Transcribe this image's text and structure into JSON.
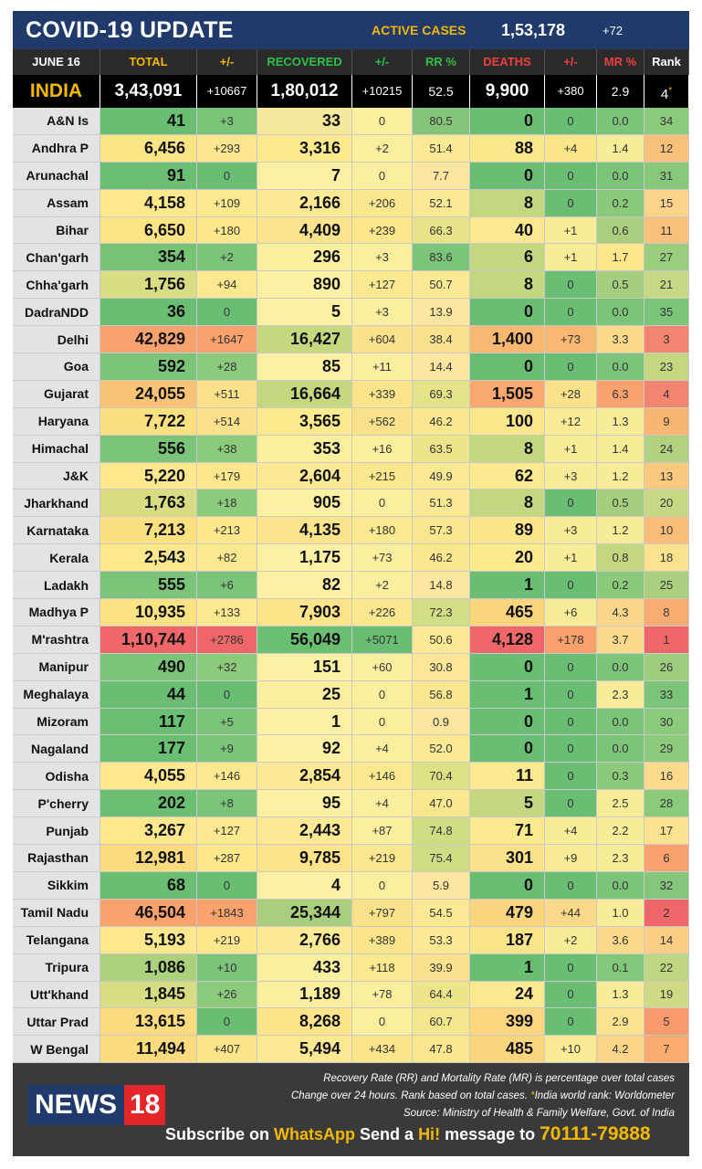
{
  "header": {
    "title": "COVID-19 UPDATE",
    "active_cases_label": "ACTIVE CASES",
    "active_cases_value": "1,53,178",
    "active_cases_change": "+72"
  },
  "columns": [
    {
      "label": "JUNE 16",
      "color": "#ffffff"
    },
    {
      "label": "TOTAL",
      "color": "#f5b800"
    },
    {
      "label": "+/-",
      "color": "#f5b800"
    },
    {
      "label": "RECOVERED",
      "color": "#2fbf4a"
    },
    {
      "label": "+/-",
      "color": "#2fbf4a"
    },
    {
      "label": "RR %",
      "color": "#2fbf4a"
    },
    {
      "label": "DEATHS",
      "color": "#f04040"
    },
    {
      "label": "+/-",
      "color": "#f04040"
    },
    {
      "label": "MR %",
      "color": "#f04040"
    },
    {
      "label": "Rank",
      "color": "#ffffff"
    }
  ],
  "india": {
    "name": "INDIA",
    "total": "3,43,091",
    "total_change": "+10667",
    "recovered": "1,80,012",
    "recovered_change": "+10215",
    "rr": "52.5",
    "deaths": "9,900",
    "deaths_change": "+380",
    "mr": "2.9",
    "rank": "4",
    "rank_mark": "*"
  },
  "states": [
    {
      "state": "A&N Is",
      "total": "41",
      "tc": "+3",
      "recovered": "33",
      "rc": "0",
      "rr": "80.5",
      "deaths": "0",
      "dc": "0",
      "mr": "0.0",
      "rank": "34",
      "colors": [
        "#69be73",
        "#7cc47a",
        "#f6e89a",
        "#fbef9f",
        "#86c47a",
        "#69be73",
        "#69be73",
        "#7cc47a",
        "#8ccb7c"
      ]
    },
    {
      "state": "Andhra P",
      "total": "6,456",
      "tc": "+293",
      "recovered": "3,316",
      "rc": "+2",
      "rr": "51.4",
      "deaths": "88",
      "dc": "+4",
      "mr": "1.4",
      "rank": "12",
      "colors": [
        "#fbe484",
        "#fce78e",
        "#fde98e",
        "#fbef9f",
        "#fbea93",
        "#fbe78b",
        "#fbe58b",
        "#f9ec98",
        "#f9c07c"
      ]
    },
    {
      "state": "Arunachal",
      "total": "91",
      "tc": "0",
      "recovered": "7",
      "rc": "0",
      "rr": "7.7",
      "deaths": "0",
      "dc": "0",
      "mr": "0.0",
      "rank": "31",
      "colors": [
        "#6bbf73",
        "#69be73",
        "#fdf0a2",
        "#fbef9f",
        "#fde7a0",
        "#69be73",
        "#69be73",
        "#7cc47a",
        "#88c87b"
      ]
    },
    {
      "state": "Assam",
      "total": "4,158",
      "tc": "+109",
      "recovered": "2,166",
      "rc": "+206",
      "rr": "52.1",
      "deaths": "8",
      "dc": "0",
      "mr": "0.2",
      "rank": "15",
      "colors": [
        "#fde88d",
        "#fbe98f",
        "#fce993",
        "#fbe78e",
        "#fbea93",
        "#c2d77f",
        "#69be73",
        "#8bca7b",
        "#fbd38a"
      ]
    },
    {
      "state": "Bihar",
      "total": "6,650",
      "tc": "+180",
      "recovered": "4,409",
      "rc": "+239",
      "rr": "66.3",
      "deaths": "40",
      "dc": "+1",
      "mr": "0.6",
      "rank": "11",
      "colors": [
        "#fbe484",
        "#fce78c",
        "#fce48c",
        "#fbe68b",
        "#e7e389",
        "#fce98f",
        "#f9ec98",
        "#abcf7f",
        "#f9c07c"
      ]
    },
    {
      "state": "Chan'garh",
      "total": "354",
      "tc": "+2",
      "recovered": "296",
      "rc": "+3",
      "rr": "83.6",
      "deaths": "6",
      "dc": "+1",
      "mr": "1.7",
      "rank": "27",
      "colors": [
        "#78c276",
        "#7cc47a",
        "#fbef9f",
        "#fbef9f",
        "#7cc47a",
        "#c2d77f",
        "#f9ec98",
        "#fbe68b",
        "#9acd7d"
      ]
    },
    {
      "state": "Chha'garh",
      "total": "1,756",
      "tc": "+94",
      "recovered": "890",
      "rc": "+127",
      "rr": "50.7",
      "deaths": "8",
      "dc": "0",
      "mr": "0.5",
      "rank": "21",
      "colors": [
        "#d8dd83",
        "#fce98f",
        "#fdf0a2",
        "#fbe98f",
        "#fbea93",
        "#c2d77f",
        "#69be73",
        "#a5ce7e",
        "#c6d884"
      ]
    },
    {
      "state": "DadraNDD",
      "total": "36",
      "tc": "0",
      "recovered": "5",
      "rc": "+3",
      "rr": "13.9",
      "deaths": "0",
      "dc": "0",
      "mr": "0.0",
      "rank": "35",
      "colors": [
        "#69be73",
        "#69be73",
        "#fdf0a2",
        "#fbef9f",
        "#fde7a0",
        "#69be73",
        "#69be73",
        "#7cc47a",
        "#7cc47a"
      ]
    },
    {
      "state": "Delhi",
      "total": "42,829",
      "tc": "+1647",
      "recovered": "16,427",
      "rc": "+604",
      "rr": "38.4",
      "deaths": "1,400",
      "dc": "+73",
      "mr": "3.3",
      "rank": "3",
      "colors": [
        "#f9a26d",
        "#f9a26d",
        "#c6d87f",
        "#fbe28a",
        "#fbe08e",
        "#f9b872",
        "#f9b872",
        "#fbd98a",
        "#f58570"
      ]
    },
    {
      "state": "Goa",
      "total": "592",
      "tc": "+28",
      "recovered": "85",
      "rc": "+11",
      "rr": "14.4",
      "deaths": "0",
      "dc": "0",
      "mr": "0.0",
      "rank": "23",
      "colors": [
        "#7cc47a",
        "#8ccb7c",
        "#fdf0a2",
        "#fbef9f",
        "#fde7a0",
        "#69be73",
        "#69be73",
        "#7cc47a",
        "#c2d77f"
      ]
    },
    {
      "state": "Gujarat",
      "total": "24,055",
      "tc": "+511",
      "recovered": "16,664",
      "rc": "+339",
      "rr": "69.3",
      "deaths": "1,505",
      "dc": "+28",
      "mr": "6.3",
      "rank": "4",
      "colors": [
        "#fbc375",
        "#fce08a",
        "#c6d87f",
        "#fbe58b",
        "#e4e387",
        "#f9a86f",
        "#fbe18a",
        "#f9a26d",
        "#f58570"
      ]
    },
    {
      "state": "Haryana",
      "total": "7,722",
      "tc": "+514",
      "recovered": "3,565",
      "rc": "+562",
      "rr": "46.2",
      "deaths": "100",
      "dc": "+12",
      "mr": "1.3",
      "rank": "9",
      "colors": [
        "#fbe080",
        "#fce08a",
        "#fde98e",
        "#fbe28a",
        "#fbe78e",
        "#fbe78b",
        "#fbeb95",
        "#f9ec98",
        "#f9b572"
      ]
    },
    {
      "state": "Himachal",
      "total": "556",
      "tc": "+38",
      "recovered": "353",
      "rc": "+16",
      "rr": "63.5",
      "deaths": "8",
      "dc": "+1",
      "mr": "1.4",
      "rank": "24",
      "colors": [
        "#7cc47a",
        "#8ccb7c",
        "#fbef9f",
        "#fbef9f",
        "#eee58b",
        "#c2d77f",
        "#f9ec98",
        "#f9ec98",
        "#b3d281"
      ]
    },
    {
      "state": "J&K",
      "total": "5,220",
      "tc": "+179",
      "recovered": "2,604",
      "rc": "+215",
      "rr": "49.9",
      "deaths": "62",
      "dc": "+3",
      "mr": "1.2",
      "rank": "13",
      "colors": [
        "#fde88d",
        "#fce78c",
        "#fce993",
        "#fbe78e",
        "#fbe893",
        "#fbe98f",
        "#f9ec98",
        "#f9ec98",
        "#fbc880"
      ]
    },
    {
      "state": "Jharkhand",
      "total": "1,763",
      "tc": "+18",
      "recovered": "905",
      "rc": "0",
      "rr": "51.3",
      "deaths": "8",
      "dc": "0",
      "mr": "0.5",
      "rank": "20",
      "colors": [
        "#d8dd83",
        "#8ccb7c",
        "#fdf0a2",
        "#fbef9f",
        "#fbea93",
        "#c2d77f",
        "#69be73",
        "#a5ce7e",
        "#c6d884"
      ]
    },
    {
      "state": "Karnataka",
      "total": "7,213",
      "tc": "+213",
      "recovered": "4,135",
      "rc": "+180",
      "rr": "57.3",
      "deaths": "89",
      "dc": "+3",
      "mr": "1.2",
      "rank": "10",
      "colors": [
        "#fbe080",
        "#fce78c",
        "#fce48c",
        "#fbe98f",
        "#f8e78f",
        "#fbe58b",
        "#f9ec98",
        "#f9ec98",
        "#f9bd7a"
      ]
    },
    {
      "state": "Kerala",
      "total": "2,543",
      "tc": "+82",
      "recovered": "1,175",
      "rc": "+73",
      "rr": "46.2",
      "deaths": "20",
      "dc": "+1",
      "mr": "0.8",
      "rank": "18",
      "colors": [
        "#fde88d",
        "#fce98f",
        "#fdf0a2",
        "#fbef9f",
        "#fbe78e",
        "#fde98e",
        "#f9ec98",
        "#c2d77f",
        "#fbe28f"
      ]
    },
    {
      "state": "Ladakh",
      "total": "555",
      "tc": "+6",
      "recovered": "82",
      "rc": "+2",
      "rr": "14.8",
      "deaths": "1",
      "dc": "0",
      "mr": "0.2",
      "rank": "25",
      "colors": [
        "#7cc47a",
        "#7cc47a",
        "#fdf0a2",
        "#fbef9f",
        "#fde7a0",
        "#69be73",
        "#69be73",
        "#8bca7b",
        "#a9cf7f"
      ]
    },
    {
      "state": "Madhya P",
      "total": "10,935",
      "tc": "+133",
      "recovered": "7,903",
      "rc": "+226",
      "rr": "72.3",
      "deaths": "465",
      "dc": "+6",
      "mr": "4.3",
      "rank": "8",
      "colors": [
        "#fce283",
        "#fce98f",
        "#fde48a",
        "#fbe78e",
        "#d4dc84",
        "#fbd57e",
        "#f9ec98",
        "#fbd68a",
        "#f9ad72"
      ]
    },
    {
      "state": "M'rashtra",
      "total": "1,10,744",
      "tc": "+2786",
      "recovered": "56,049",
      "rc": "+5071",
      "rr": "50.6",
      "deaths": "4,128",
      "dc": "+178",
      "mr": "3.7",
      "rank": "1",
      "colors": [
        "#f06769",
        "#f06769",
        "#6bbf73",
        "#69be73",
        "#fbea93",
        "#f06769",
        "#f9a06c",
        "#fbd98a",
        "#f06769"
      ]
    },
    {
      "state": "Manipur",
      "total": "490",
      "tc": "+32",
      "recovered": "151",
      "rc": "+60",
      "rr": "30.8",
      "deaths": "0",
      "dc": "0",
      "mr": "0.0",
      "rank": "26",
      "colors": [
        "#7cc47a",
        "#8ccb7c",
        "#fdf0a2",
        "#fbef9f",
        "#fde59a",
        "#69be73",
        "#69be73",
        "#7cc47a",
        "#9fcd7e"
      ]
    },
    {
      "state": "Meghalaya",
      "total": "44",
      "tc": "0",
      "recovered": "25",
      "rc": "0",
      "rr": "56.8",
      "deaths": "1",
      "dc": "0",
      "mr": "2.3",
      "rank": "33",
      "colors": [
        "#69be73",
        "#69be73",
        "#fbef9f",
        "#fbef9f",
        "#f8e78f",
        "#69be73",
        "#69be73",
        "#f9ec98",
        "#7cc47a"
      ]
    },
    {
      "state": "Mizoram",
      "total": "117",
      "tc": "+5",
      "recovered": "1",
      "rc": "0",
      "rr": "0.9",
      "deaths": "0",
      "dc": "0",
      "mr": "0.0",
      "rank": "30",
      "colors": [
        "#6bbf73",
        "#7cc47a",
        "#fdf0a2",
        "#fbef9f",
        "#fde7a0",
        "#69be73",
        "#69be73",
        "#7cc47a",
        "#8ccb7c"
      ]
    },
    {
      "state": "Nagaland",
      "total": "177",
      "tc": "+9",
      "recovered": "92",
      "rc": "+4",
      "rr": "52.0",
      "deaths": "0",
      "dc": "0",
      "mr": "0.0",
      "rank": "29",
      "colors": [
        "#6bbf73",
        "#7cc47a",
        "#fdf0a2",
        "#fbef9f",
        "#fbea93",
        "#69be73",
        "#69be73",
        "#7cc47a",
        "#8ccb7c"
      ]
    },
    {
      "state": "Odisha",
      "total": "4,055",
      "tc": "+146",
      "recovered": "2,854",
      "rc": "+146",
      "rr": "70.4",
      "deaths": "11",
      "dc": "0",
      "mr": "0.3",
      "rank": "16",
      "colors": [
        "#fde88d",
        "#fce98f",
        "#fce993",
        "#fbe98f",
        "#dce186",
        "#fbe98f",
        "#69be73",
        "#8bca7b",
        "#fbda8d"
      ]
    },
    {
      "state": "P'cherry",
      "total": "202",
      "tc": "+8",
      "recovered": "95",
      "rc": "+4",
      "rr": "47.0",
      "deaths": "5",
      "dc": "0",
      "mr": "2.5",
      "rank": "28",
      "colors": [
        "#6bbf73",
        "#7cc47a",
        "#fdf0a2",
        "#fbef9f",
        "#fbe78e",
        "#c2d77f",
        "#69be73",
        "#f9ec98",
        "#8ccb7c"
      ]
    },
    {
      "state": "Punjab",
      "total": "3,267",
      "tc": "+127",
      "recovered": "2,443",
      "rc": "+87",
      "rr": "74.8",
      "deaths": "71",
      "dc": "+4",
      "mr": "2.2",
      "rank": "17",
      "colors": [
        "#fde88d",
        "#fce98f",
        "#fce993",
        "#fbef9f",
        "#cfdc83",
        "#fbe98f",
        "#f9ec98",
        "#f9ec98",
        "#fbe28f"
      ]
    },
    {
      "state": "Rajasthan",
      "total": "12,981",
      "tc": "+287",
      "recovered": "9,785",
      "rc": "+219",
      "rr": "75.4",
      "deaths": "301",
      "dc": "+9",
      "mr": "2.3",
      "rank": "6",
      "colors": [
        "#fcdb7f",
        "#fce78c",
        "#fde48a",
        "#fbe78e",
        "#cfdc83",
        "#fbe18a",
        "#fbeb95",
        "#f9ec98",
        "#f9a26d"
      ]
    },
    {
      "state": "Sikkim",
      "total": "68",
      "tc": "0",
      "recovered": "4",
      "rc": "0",
      "rr": "5.9",
      "deaths": "0",
      "dc": "0",
      "mr": "0.0",
      "rank": "32",
      "colors": [
        "#69be73",
        "#69be73",
        "#fdf0a2",
        "#fbef9f",
        "#fde7a0",
        "#69be73",
        "#69be73",
        "#7cc47a",
        "#84c67a"
      ]
    },
    {
      "state": "Tamil Nadu",
      "total": "46,504",
      "tc": "+1843",
      "recovered": "25,344",
      "rc": "+797",
      "rr": "54.5",
      "deaths": "479",
      "dc": "+44",
      "mr": "1.0",
      "rank": "2",
      "colors": [
        "#f9a26d",
        "#f9a26d",
        "#a9cf7e",
        "#fbe28a",
        "#fbea93",
        "#fbd57e",
        "#fbd98a",
        "#f9ec98",
        "#f06769"
      ]
    },
    {
      "state": "Telangana",
      "total": "5,193",
      "tc": "+219",
      "recovered": "2,766",
      "rc": "+389",
      "rr": "53.3",
      "deaths": "187",
      "dc": "+2",
      "mr": "3.6",
      "rank": "14",
      "colors": [
        "#fde88d",
        "#fce78c",
        "#fce993",
        "#fbe58b",
        "#fbea93",
        "#fbe58b",
        "#f9ec98",
        "#fbd98a",
        "#fbcd85"
      ]
    },
    {
      "state": "Tripura",
      "total": "1,086",
      "tc": "+10",
      "recovered": "433",
      "rc": "+118",
      "rr": "39.9",
      "deaths": "1",
      "dc": "0",
      "mr": "0.1",
      "rank": "22",
      "colors": [
        "#abd07e",
        "#7cc47a",
        "#fbef9f",
        "#fbe98f",
        "#fbe18e",
        "#69be73",
        "#69be73",
        "#83c77a",
        "#bfd682"
      ]
    },
    {
      "state": "Utt'khand",
      "total": "1,845",
      "tc": "+26",
      "recovered": "1,189",
      "rc": "+78",
      "rr": "64.4",
      "deaths": "24",
      "dc": "0",
      "mr": "1.3",
      "rank": "19",
      "colors": [
        "#d8dd83",
        "#8ccb7c",
        "#fbef9f",
        "#fbef9f",
        "#eee58b",
        "#fce98f",
        "#69be73",
        "#f9ec98",
        "#d0da85"
      ]
    },
    {
      "state": "Uttar Prad",
      "total": "13,615",
      "tc": "0",
      "recovered": "8,268",
      "rc": "0",
      "rr": "60.7",
      "deaths": "399",
      "dc": "0",
      "mr": "2.9",
      "rank": "5",
      "colors": [
        "#fcdb7f",
        "#69be73",
        "#fde48a",
        "#fbef9f",
        "#f4e68d",
        "#fbd67e",
        "#69be73",
        "#fbe28e",
        "#f99a6e"
      ]
    },
    {
      "state": "W Bengal",
      "total": "11,494",
      "tc": "+407",
      "recovered": "5,494",
      "rc": "+434",
      "rr": "47.8",
      "deaths": "485",
      "dc": "+10",
      "mr": "4.2",
      "rank": "7",
      "colors": [
        "#fcdb7f",
        "#fce48a",
        "#fce993",
        "#fbe58b",
        "#fbe78e",
        "#fbd57e",
        "#fbeb95",
        "#fbd68a",
        "#f9ab70"
      ]
    }
  ],
  "footer": {
    "note1": "Recovery Rate (RR) and Mortality Rate (MR) is percentage over total cases",
    "note2_a": "Change over 24 hours. Rank based on total cases. ",
    "note2_star": "*",
    "note2_b": "India world rank: Worldometer",
    "note3": "Source: Ministry of Health & Family Welfare, Govt. of India",
    "logo_left": "NEWS",
    "logo_right": "18",
    "sub_1": "Subscribe on ",
    "sub_wa": "WhatsApp",
    "sub_2": " Send a ",
    "sub_hi": "Hi!",
    "sub_3": " message to ",
    "sub_phone": "70111-79888"
  }
}
